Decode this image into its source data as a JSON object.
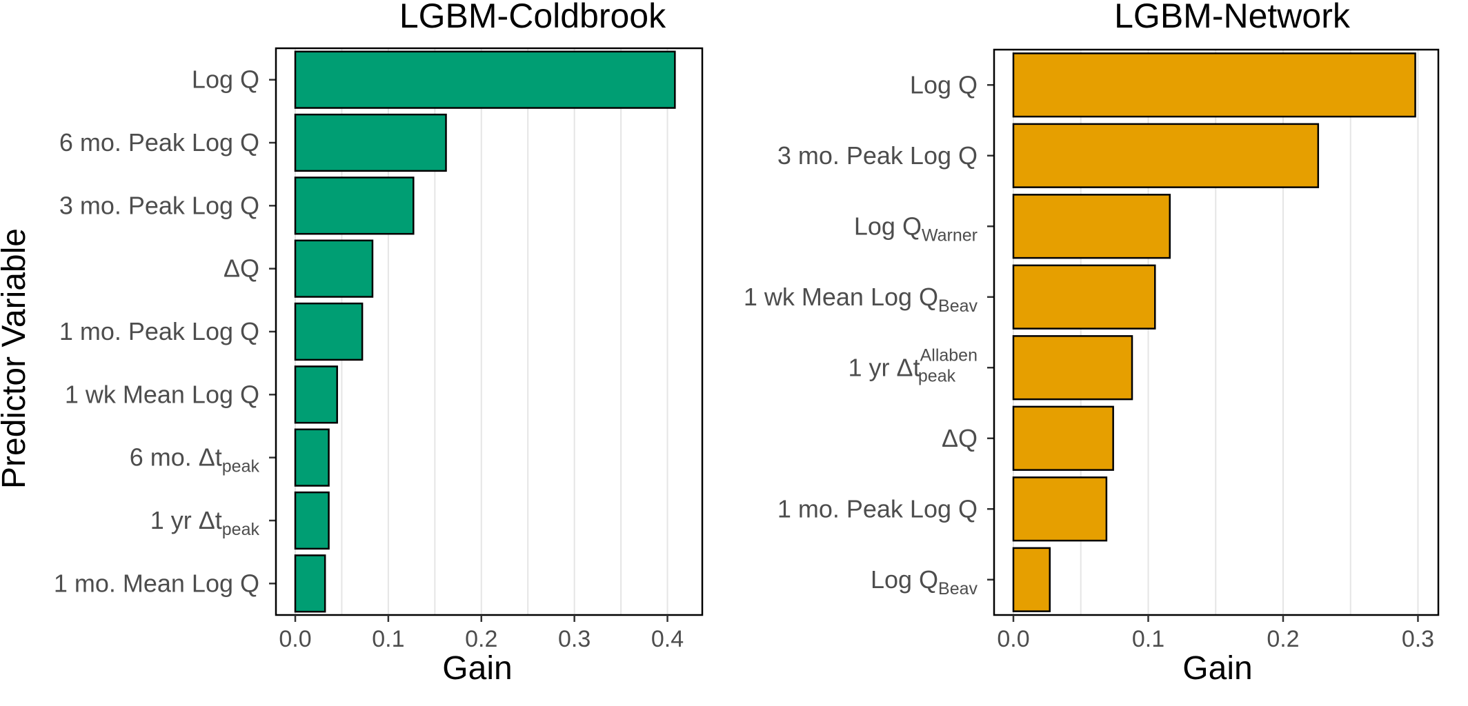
{
  "y_axis_title": "Predictor Variable",
  "chart_data": [
    {
      "type": "bar",
      "orientation": "horizontal",
      "title": "LGBM-Coldbrook",
      "xlabel": "Gain",
      "ylabel": "Predictor Variable",
      "xlim": [
        0,
        0.43
      ],
      "xticks": [
        0,
        0.1,
        0.2,
        0.3,
        0.4
      ],
      "tick_labels": [
        "0.0",
        "0.1",
        "0.2",
        "0.3",
        "0.4"
      ],
      "grid": "vertical",
      "color": "#009E73",
      "categories": [
        {
          "main": "Log Q",
          "sub": "",
          "sup": ""
        },
        {
          "main": "6 mo. Peak Log Q",
          "sub": "",
          "sup": ""
        },
        {
          "main": "3 mo. Peak Log Q",
          "sub": "",
          "sup": ""
        },
        {
          "main": "ΔQ",
          "sub": "",
          "sup": ""
        },
        {
          "main": "1 mo. Peak Log Q",
          "sub": "",
          "sup": ""
        },
        {
          "main": "1 wk Mean Log Q",
          "sub": "",
          "sup": ""
        },
        {
          "main": "6 mo. Δt",
          "sub": "peak",
          "sup": ""
        },
        {
          "main": "1 yr Δt",
          "sub": "peak",
          "sup": ""
        },
        {
          "main": "1 mo. Mean Log Q",
          "sub": "",
          "sup": ""
        }
      ],
      "values": [
        0.408,
        0.162,
        0.127,
        0.083,
        0.072,
        0.045,
        0.036,
        0.036,
        0.032
      ]
    },
    {
      "type": "bar",
      "orientation": "horizontal",
      "title": "LGBM-Network",
      "xlabel": "Gain",
      "ylabel": "",
      "xlim": [
        0,
        0.31
      ],
      "xticks": [
        0,
        0.1,
        0.2,
        0.3
      ],
      "tick_labels": [
        "0.0",
        "0.1",
        "0.2",
        "0.3"
      ],
      "grid": "vertical",
      "color": "#E69F00",
      "categories": [
        {
          "main": "Log Q",
          "sub": "",
          "sup": ""
        },
        {
          "main": "3 mo.  Peak Log Q",
          "sub": "",
          "sup": ""
        },
        {
          "main": "Log Q",
          "sub": "Warner",
          "sup": ""
        },
        {
          "main": "1 wk Mean Log Q",
          "sub": "Beav",
          "sup": ""
        },
        {
          "main": "1 yr Δt",
          "sub": "peak",
          "sup": "Allaben"
        },
        {
          "main": "ΔQ",
          "sub": "",
          "sup": ""
        },
        {
          "main": "1 mo. Peak Log Q",
          "sub": "",
          "sup": ""
        },
        {
          "main": "Log Q",
          "sub": "Beav",
          "sup": ""
        }
      ],
      "values": [
        0.298,
        0.226,
        0.116,
        0.105,
        0.088,
        0.074,
        0.069,
        0.027
      ]
    }
  ]
}
